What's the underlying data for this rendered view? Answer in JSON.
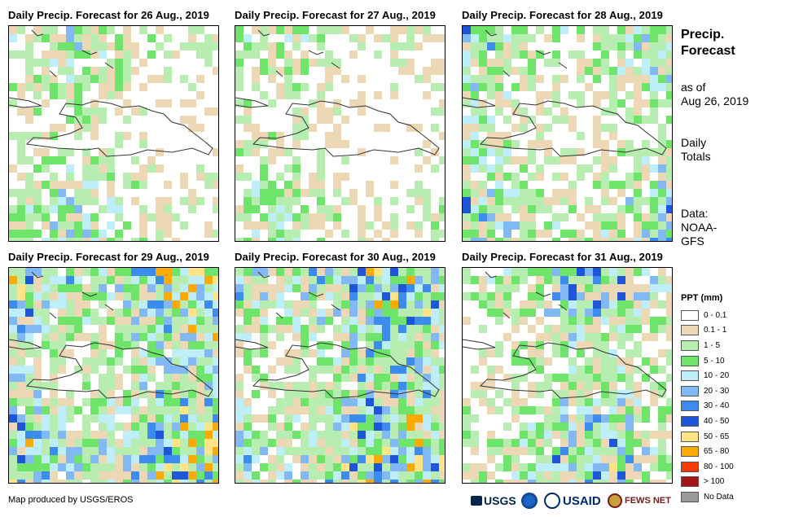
{
  "panels": [
    {
      "title": "Daily Precip. Forecast for 26 Aug., 2019",
      "intensity": 0.3
    },
    {
      "title": "Daily Precip. Forecast for 27 Aug., 2019",
      "intensity": 0.15
    },
    {
      "title": "Daily Precip. Forecast for 28 Aug., 2019",
      "intensity": 0.55
    },
    {
      "title": "Daily Precip. Forecast for 29 Aug., 2019",
      "intensity": 0.95
    },
    {
      "title": "Daily Precip. Forecast for 30 Aug., 2019",
      "intensity": 0.9
    },
    {
      "title": "Daily Precip. Forecast for 31 Aug., 2019",
      "intensity": 0.6
    }
  ],
  "sidebar": {
    "title_line1": "Precip.",
    "title_line2": "Forecast",
    "asof_line1": "as of",
    "asof_line2": "Aug 26, 2019",
    "daily_line1": "Daily",
    "daily_line2": "Totals",
    "data_line1": "Data:",
    "data_line2": "NOAA-",
    "data_line3": "GFS"
  },
  "legend": {
    "title": "PPT (mm)",
    "items": [
      {
        "label": "0 - 0.1",
        "color": "#ffffff"
      },
      {
        "label": "0.1 - 1",
        "color": "#ecd8b5"
      },
      {
        "label": "1 - 5",
        "color": "#b7edb0"
      },
      {
        "label": "5 - 10",
        "color": "#6ee46a"
      },
      {
        "label": "10 - 20",
        "color": "#bfeefb"
      },
      {
        "label": "20 - 30",
        "color": "#82b9f5"
      },
      {
        "label": "30 - 40",
        "color": "#3c8cf0"
      },
      {
        "label": "40 - 50",
        "color": "#1d56d9"
      },
      {
        "label": "50 - 65",
        "color": "#fee484"
      },
      {
        "label": "65 - 80",
        "color": "#fbaa00"
      },
      {
        "label": "80 - 100",
        "color": "#f53b00"
      },
      {
        "label": "> 100",
        "color": "#a41517"
      },
      {
        "label": "No Data",
        "color": "#9a9a9a"
      }
    ]
  },
  "credit": "Map produced by USGS/EROS",
  "logos": {
    "usgs": "USGS",
    "usaid": "USAID",
    "fewsnet": "FEWS NET"
  },
  "colors": {
    "coast": "#333333"
  }
}
